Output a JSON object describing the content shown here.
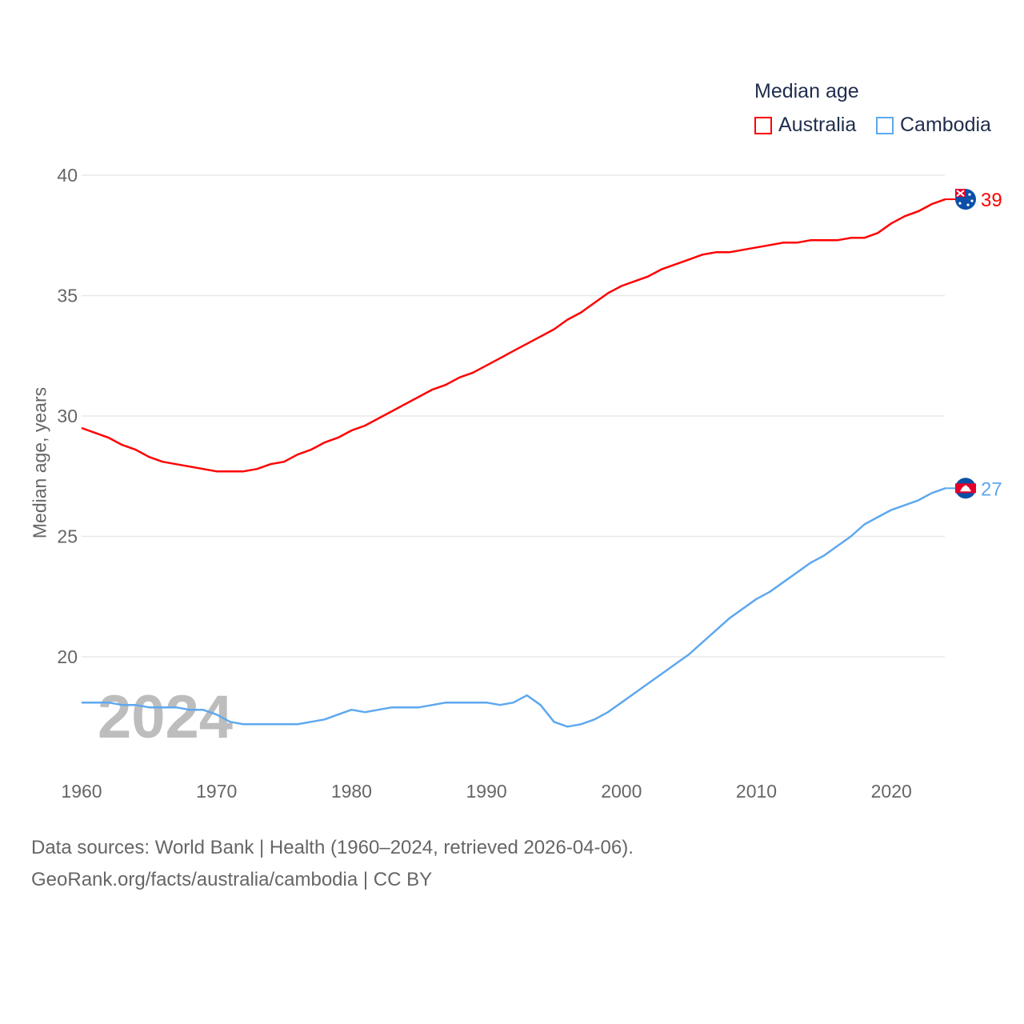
{
  "chart_data": {
    "type": "line",
    "title": "Median age",
    "xlabel": "",
    "ylabel": "Median age, years",
    "xlim": [
      1960,
      2024
    ],
    "ylim": [
      15.4,
      40
    ],
    "yticks": [
      20,
      25,
      30,
      35,
      40
    ],
    "xticks": [
      1960,
      1970,
      1980,
      1990,
      2000,
      2010,
      2020
    ],
    "grid": true,
    "legend_position": "top-right",
    "watermark_year": "2024",
    "x": [
      1960,
      1961,
      1962,
      1963,
      1964,
      1965,
      1966,
      1967,
      1968,
      1969,
      1970,
      1971,
      1972,
      1973,
      1974,
      1975,
      1976,
      1977,
      1978,
      1979,
      1980,
      1981,
      1982,
      1983,
      1984,
      1985,
      1986,
      1987,
      1988,
      1989,
      1990,
      1991,
      1992,
      1993,
      1994,
      1995,
      1996,
      1997,
      1998,
      1999,
      2000,
      2001,
      2002,
      2003,
      2004,
      2005,
      2006,
      2007,
      2008,
      2009,
      2010,
      2011,
      2012,
      2013,
      2014,
      2015,
      2016,
      2017,
      2018,
      2019,
      2020,
      2021,
      2022,
      2023,
      2024
    ],
    "series": [
      {
        "name": "Australia",
        "color": "#ff0000",
        "end_label": "39",
        "values": [
          29.5,
          29.3,
          29.1,
          28.8,
          28.6,
          28.3,
          28.1,
          28.0,
          27.9,
          27.8,
          27.7,
          27.7,
          27.7,
          27.8,
          28.0,
          28.1,
          28.4,
          28.6,
          28.9,
          29.1,
          29.4,
          29.6,
          29.9,
          30.2,
          30.5,
          30.8,
          31.1,
          31.3,
          31.6,
          31.8,
          32.1,
          32.4,
          32.7,
          33.0,
          33.3,
          33.6,
          34.0,
          34.3,
          34.7,
          35.1,
          35.4,
          35.6,
          35.8,
          36.1,
          36.3,
          36.5,
          36.7,
          36.8,
          36.8,
          36.9,
          37.0,
          37.1,
          37.2,
          37.2,
          37.3,
          37.3,
          37.3,
          37.4,
          37.4,
          37.6,
          38.0,
          38.3,
          38.5,
          38.8,
          39.0
        ]
      },
      {
        "name": "Cambodia",
        "color": "#5ea8ef",
        "end_label": "27",
        "values": [
          18.1,
          18.1,
          18.1,
          18.0,
          18.0,
          17.9,
          17.9,
          17.9,
          17.8,
          17.8,
          17.6,
          17.3,
          17.2,
          17.2,
          17.2,
          17.2,
          17.2,
          17.3,
          17.4,
          17.6,
          17.8,
          17.7,
          17.8,
          17.9,
          17.9,
          17.9,
          18.0,
          18.1,
          18.1,
          18.1,
          18.1,
          18.0,
          18.1,
          18.4,
          18.0,
          17.3,
          17.1,
          17.2,
          17.4,
          17.7,
          18.1,
          18.5,
          18.9,
          19.3,
          19.7,
          20.1,
          20.6,
          21.1,
          21.6,
          22.0,
          22.4,
          22.7,
          23.1,
          23.5,
          23.9,
          24.2,
          24.6,
          25.0,
          25.5,
          25.8,
          26.1,
          26.3,
          26.5,
          26.8,
          27.0
        ]
      }
    ]
  },
  "footer": {
    "line1": "Data sources: World Bank | Health (1960–2024, retrieved 2026-04-06).",
    "line2": "GeoRank.org/facts/australia/cambodia | CC BY"
  }
}
